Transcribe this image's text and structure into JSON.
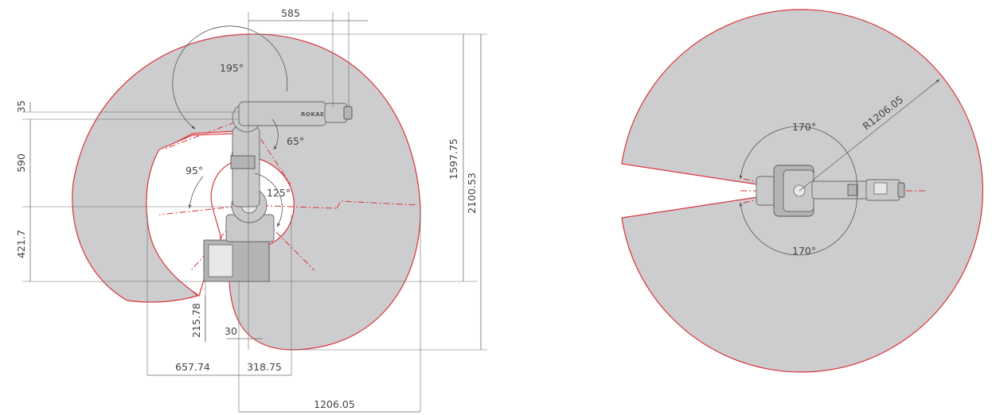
{
  "side_view": {
    "angles": {
      "a195": "195°",
      "a65": "65°",
      "a95": "95°",
      "a125": "125°"
    },
    "dims": {
      "top_reach": "585",
      "d35": "35",
      "d590": "590",
      "d421": "421.7",
      "d1597": "1597.75",
      "d2100": "2100.53",
      "d215": "215.78",
      "d30": "30",
      "d657": "657.74",
      "d318": "318.75",
      "d1206": "1206.05"
    },
    "logo": "ROKAE"
  },
  "top_view": {
    "angles": {
      "top": "170°",
      "bottom": "170°"
    },
    "radius": "R1206.05"
  },
  "colors": {
    "envelope_fill": "#cdcdcf",
    "envelope_stroke": "#d8343a",
    "dimension_line": "#6a6a6a"
  }
}
